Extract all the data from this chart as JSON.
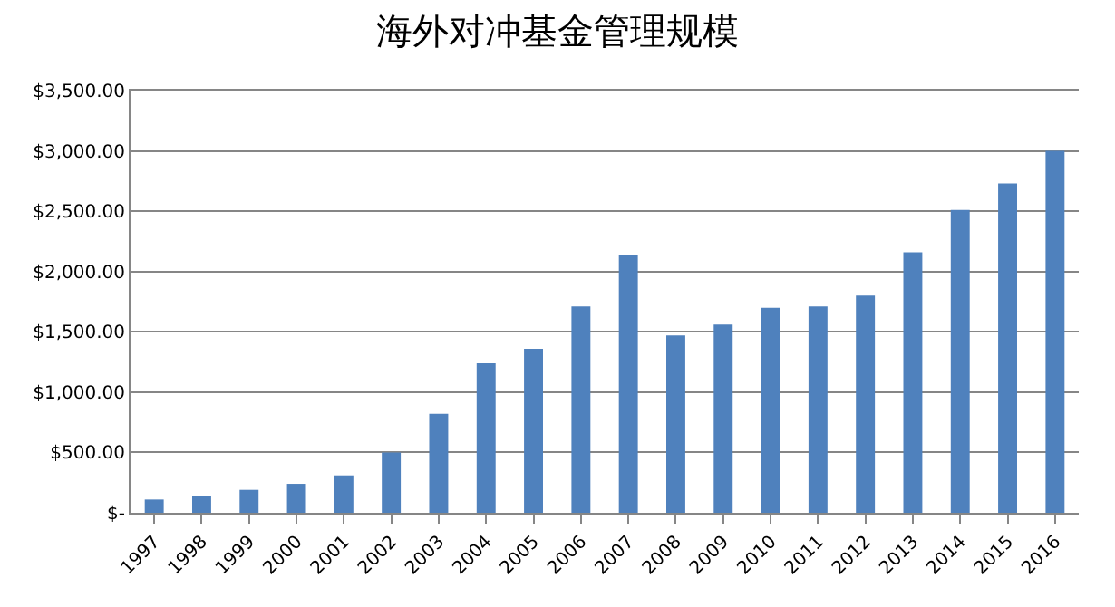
{
  "chart_data": {
    "type": "bar",
    "title": "海外对冲基金管理规模",
    "categories": [
      "1997",
      "1998",
      "1999",
      "2000",
      "2001",
      "2002",
      "2003",
      "2004",
      "2005",
      "2006",
      "2007",
      "2008",
      "2009",
      "2010",
      "2011",
      "2012",
      "2013",
      "2014",
      "2015",
      "2016"
    ],
    "values": [
      110,
      140,
      190,
      240,
      310,
      500,
      820,
      1240,
      1360,
      1710,
      2140,
      1470,
      1560,
      1700,
      1710,
      1800,
      2160,
      2510,
      2730,
      3000
    ],
    "color": "#4f81bd",
    "ylim": [
      0,
      3500
    ],
    "yticks": [
      {
        "value": 0,
        "label": "$-"
      },
      {
        "value": 500,
        "label": "$500.00"
      },
      {
        "value": 1000,
        "label": "$1,000.00"
      },
      {
        "value": 1500,
        "label": "$1,500.00"
      },
      {
        "value": 2000,
        "label": "$2,000.00"
      },
      {
        "value": 2500,
        "label": "$2,500.00"
      },
      {
        "value": 3000,
        "label": "$3,000.00"
      },
      {
        "value": 3500,
        "label": "$3,500.00"
      }
    ],
    "grid": "y"
  }
}
